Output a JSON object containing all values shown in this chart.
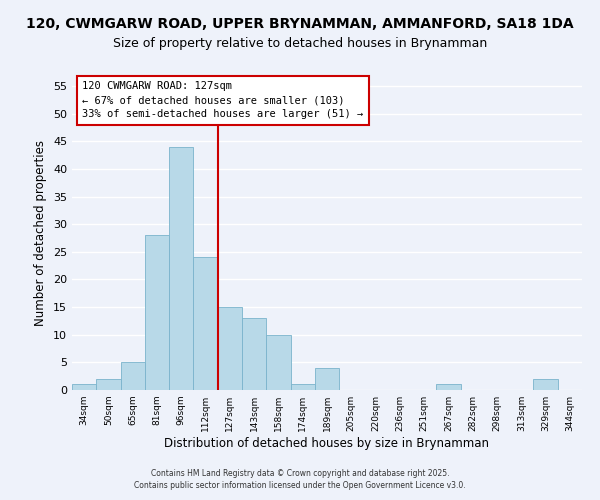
{
  "title": "120, CWMGARW ROAD, UPPER BRYNAMMAN, AMMANFORD, SA18 1DA",
  "subtitle": "Size of property relative to detached houses in Brynamman",
  "xlabel": "Distribution of detached houses by size in Brynamman",
  "ylabel": "Number of detached properties",
  "bin_labels": [
    "34sqm",
    "50sqm",
    "65sqm",
    "81sqm",
    "96sqm",
    "112sqm",
    "127sqm",
    "143sqm",
    "158sqm",
    "174sqm",
    "189sqm",
    "205sqm",
    "220sqm",
    "236sqm",
    "251sqm",
    "267sqm",
    "282sqm",
    "298sqm",
    "313sqm",
    "329sqm",
    "344sqm"
  ],
  "bar_heights": [
    1,
    2,
    5,
    28,
    44,
    24,
    15,
    13,
    10,
    1,
    4,
    0,
    0,
    0,
    0,
    1,
    0,
    0,
    0,
    2,
    0
  ],
  "bar_color": "#b8d9e8",
  "bar_edge_color": "#7ab3cc",
  "property_line_x": 6,
  "property_line_label": "120 CWMGARW ROAD: 127sqm",
  "annotation_line2": "← 67% of detached houses are smaller (103)",
  "annotation_line3": "33% of semi-detached houses are larger (51) →",
  "annotation_box_color": "#ffffff",
  "annotation_box_edge": "#cc0000",
  "property_line_color": "#cc0000",
  "ylim": [
    0,
    57
  ],
  "yticks": [
    0,
    5,
    10,
    15,
    20,
    25,
    30,
    35,
    40,
    45,
    50,
    55
  ],
  "footer1": "Contains HM Land Registry data © Crown copyright and database right 2025.",
  "footer2": "Contains public sector information licensed under the Open Government Licence v3.0.",
  "background_color": "#eef2fa",
  "grid_color": "#ffffff",
  "title_fontsize": 10,
  "subtitle_fontsize": 9
}
